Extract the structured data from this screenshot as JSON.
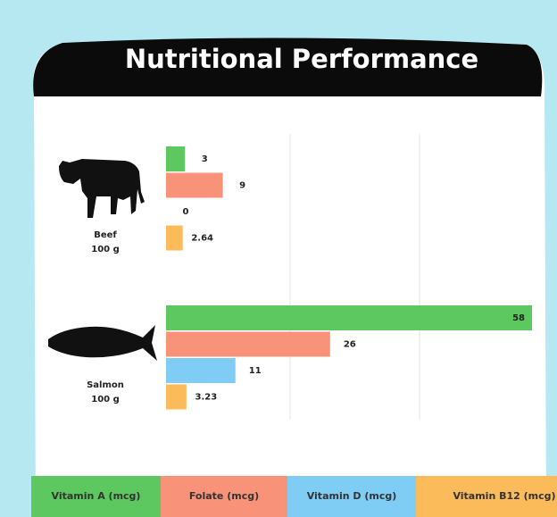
{
  "chart_data": {
    "type": "hbar",
    "title": "Nutritional Performance",
    "categories": [
      "Beef",
      "Salmon"
    ],
    "category_notes": [
      "100 g",
      "100 g"
    ],
    "series": [
      {
        "name": "Vitamin A (mcg)",
        "color": "#5cc85f",
        "values": [
          3,
          58
        ]
      },
      {
        "name": "Folate (mcg)",
        "color": "#f8937a",
        "values": [
          9,
          26
        ]
      },
      {
        "name": "Vitamin D (mcg)",
        "color": "#7fcdf5",
        "values": [
          0,
          11
        ]
      },
      {
        "name": "Vitamin B12 (mcg)",
        "color": "#fbbb5a",
        "values": [
          2.64,
          3.23
        ]
      }
    ]
  }
}
